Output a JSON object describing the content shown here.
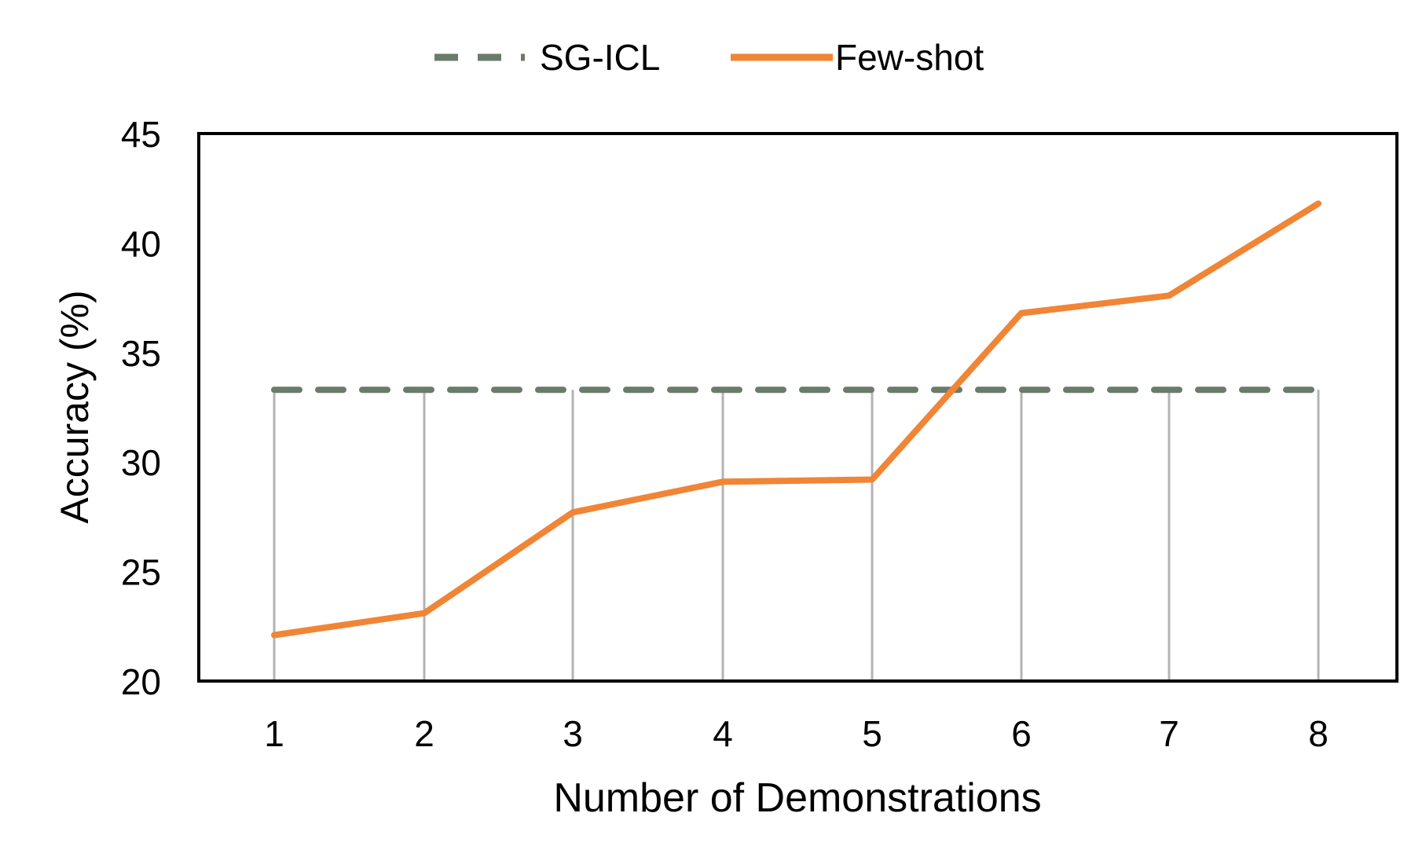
{
  "chart_data": {
    "type": "line",
    "xlabel": "Number of Demonstrations",
    "ylabel": "Accuracy (%)",
    "ylim": [
      20,
      45
    ],
    "yticks": [
      "20",
      "25",
      "30",
      "35",
      "40",
      "45"
    ],
    "categories": [
      "1",
      "2",
      "3",
      "4",
      "5",
      "6",
      "7",
      "8"
    ],
    "legend_position": "top-center",
    "grid": "vertical",
    "series": [
      {
        "name": "SG-ICL",
        "style": "dashed",
        "color": "#6b7b6b",
        "values": [
          33.3,
          33.3,
          33.3,
          33.3,
          33.3,
          33.3,
          33.3,
          33.3
        ]
      },
      {
        "name": "Few-shot",
        "style": "solid",
        "color": "#f08536",
        "values": [
          22.1,
          23.1,
          27.7,
          29.1,
          29.2,
          36.8,
          37.6,
          41.8
        ]
      }
    ]
  }
}
